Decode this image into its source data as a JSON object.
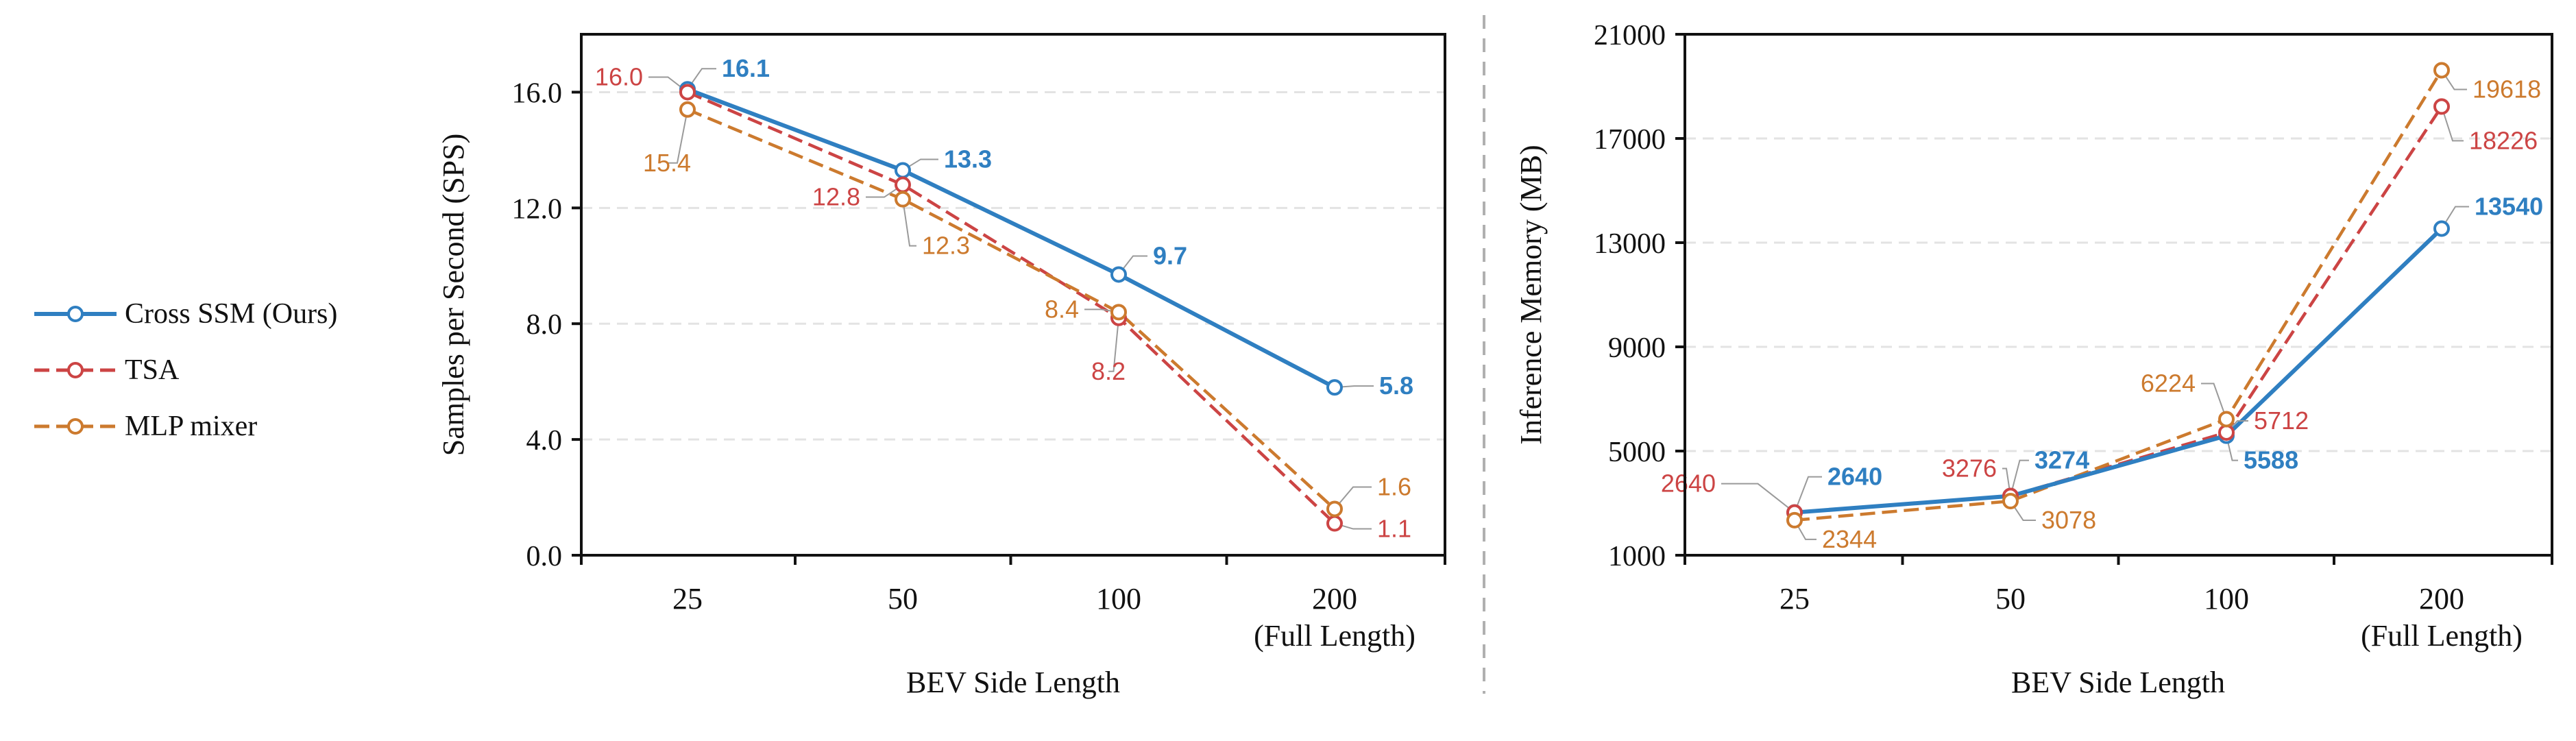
{
  "legend": {
    "entries": [
      "Cross SSM (Ours)",
      "TSA",
      "MLP mixer"
    ]
  },
  "colors": {
    "Cross SSM (Ours)": "#2f7fc1",
    "TSA": "#cc4444",
    "MLP mixer": "#cc7a2e",
    "grid": "#e3e3e3",
    "leader": "#9a9a9a",
    "divider": "#b0b0b0"
  },
  "chart_data": [
    {
      "type": "line",
      "categories": [
        "25",
        "50",
        "100",
        "200"
      ],
      "category_sublabels": [
        "",
        "",
        "",
        "(Full Length)"
      ],
      "xlabel": "BEV Side Length",
      "ylabel": "Samples per Second (SPS)",
      "ylim": [
        0,
        18
      ],
      "yticks": [
        "0.0",
        "4.0",
        "8.0",
        "12.0",
        "16.0"
      ],
      "grid": "horizontal dashed",
      "series": [
        {
          "name": "Cross SSM (Ours)",
          "values": [
            16.1,
            13.3,
            9.7,
            5.8
          ],
          "value_labels": [
            "16.1",
            "13.3",
            "9.7",
            "5.8"
          ],
          "style": "solid"
        },
        {
          "name": "TSA",
          "values": [
            16.0,
            12.8,
            8.2,
            1.1
          ],
          "value_labels": [
            "16.0",
            "12.8",
            "8.2",
            "1.1"
          ],
          "style": "dashed"
        },
        {
          "name": "MLP mixer",
          "values": [
            15.4,
            12.3,
            8.4,
            1.6
          ],
          "value_labels": [
            "15.4",
            "12.3",
            "8.4",
            "1.6"
          ],
          "style": "dashed"
        }
      ]
    },
    {
      "type": "line",
      "categories": [
        "25",
        "50",
        "100",
        "200"
      ],
      "category_sublabels": [
        "",
        "",
        "",
        "(Full Length)"
      ],
      "xlabel": "BEV Side Length",
      "ylabel": "Inference Memory (MB)",
      "ylim": [
        1000,
        21000
      ],
      "yticks": [
        "1000",
        "5000",
        "9000",
        "13000",
        "17000",
        "21000"
      ],
      "grid": "horizontal dashed",
      "series": [
        {
          "name": "Cross SSM (Ours)",
          "values": [
            2640,
            3274,
            5588,
            13540
          ],
          "value_labels": [
            "2640",
            "3274",
            "5588",
            "13540"
          ],
          "style": "solid"
        },
        {
          "name": "TSA",
          "values": [
            2640,
            3276,
            5712,
            18226
          ],
          "value_labels": [
            "2640",
            "3276",
            "5712",
            "18226"
          ],
          "style": "dashed"
        },
        {
          "name": "MLP mixer",
          "values": [
            2344,
            3078,
            6224,
            19618
          ],
          "value_labels": [
            "2344",
            "3078",
            "6224",
            "19618"
          ],
          "style": "dashed"
        }
      ]
    }
  ]
}
